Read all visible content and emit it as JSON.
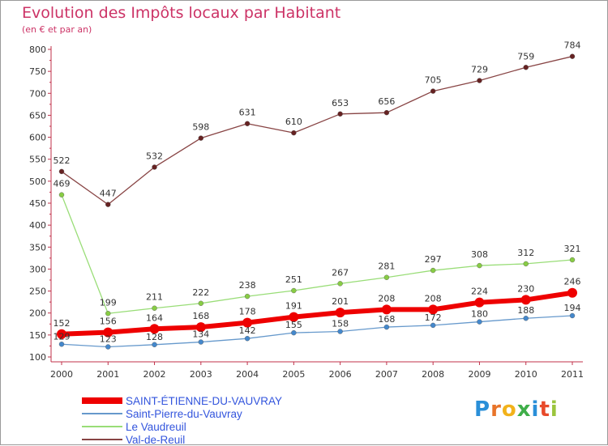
{
  "header": {
    "title": "Evolution des Impôts locaux par Habitant",
    "subtitle": "(en € et par an)"
  },
  "brand": {
    "logo_letters": [
      "P",
      "r",
      "o",
      "x",
      "i",
      "t",
      "i"
    ],
    "logo_colors": [
      "#2a8fd8",
      "#e8742a",
      "#f2b21b",
      "#3fae49",
      "#2a8fd8",
      "#e84a2a",
      "#9bc53d"
    ]
  },
  "chart_data": {
    "type": "line",
    "title": "Evolution des Impôts locaux par Habitant",
    "subtitle": "(en € et par an)",
    "xlabel": "",
    "ylabel": "",
    "x": [
      "2000",
      "2001",
      "2002",
      "2003",
      "2004",
      "2005",
      "2006",
      "2007",
      "2008",
      "2009",
      "2010",
      "2011"
    ],
    "ylim": [
      100,
      800
    ],
    "yticks": [
      100,
      150,
      200,
      250,
      300,
      350,
      400,
      450,
      500,
      550,
      600,
      650,
      700,
      750,
      800
    ],
    "grid": false,
    "legend_position": "bottom-left",
    "series": [
      {
        "name": "SAINT-ÉTIENNE-DU-VAUVRAY",
        "color": "#ee0000",
        "marker": "#ee0000",
        "values": [
          152,
          156,
          164,
          168,
          178,
          191,
          201,
          208,
          208,
          224,
          230,
          246
        ]
      },
      {
        "name": "Saint-Pierre-du-Vauvray",
        "color": "#6699cc",
        "marker": "#4488cc",
        "values": [
          129,
          123,
          128,
          134,
          142,
          155,
          158,
          168,
          172,
          180,
          188,
          194
        ]
      },
      {
        "name": "Le Vaudreuil",
        "color": "#99dd77",
        "marker": "#88cc44",
        "values": [
          469,
          199,
          211,
          222,
          238,
          251,
          267,
          281,
          297,
          308,
          312,
          321
        ]
      },
      {
        "name": "Val-de-Reuil",
        "color": "#884444",
        "marker": "#662222",
        "values": [
          522,
          447,
          532,
          598,
          631,
          610,
          653,
          656,
          705,
          729,
          759,
          784
        ]
      }
    ]
  }
}
